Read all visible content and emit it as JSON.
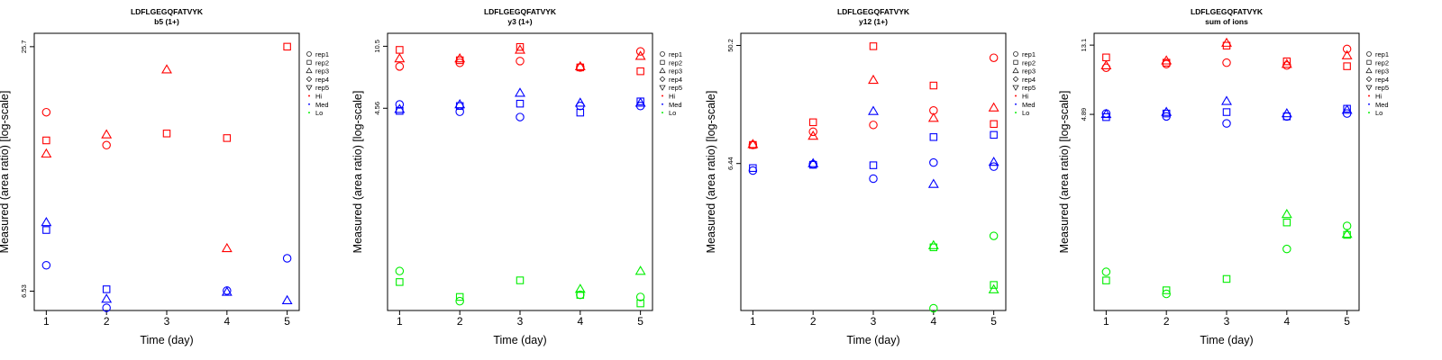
{
  "legend": {
    "entries": [
      {
        "label": "rep1",
        "marker": "circle"
      },
      {
        "label": "rep2",
        "marker": "square"
      },
      {
        "label": "rep3",
        "marker": "triangle-up"
      },
      {
        "label": "rep4",
        "marker": "diamond"
      },
      {
        "label": "rep5",
        "marker": "triangle-down"
      },
      {
        "label": "Hi",
        "marker": "dot",
        "color": "#ff0000"
      },
      {
        "label": "Med",
        "marker": "dot",
        "color": "#0000ff"
      },
      {
        "label": "Lo",
        "marker": "dot",
        "color": "#00ee00"
      }
    ]
  },
  "colors": {
    "Hi": "#ff0000",
    "Med": "#0000ff",
    "Lo": "#00ee00"
  },
  "chart_data": [
    {
      "type": "scatter",
      "title": "LDFLGEGQFATVYK",
      "subtitle": "b5 (1+)",
      "xlabel": "Time (day)",
      "ylabel": "Measured (area ratio) [log-scale]",
      "y_scale": "log",
      "xlim": [
        0.8,
        5.2
      ],
      "ylim": [
        5.86,
        27.7
      ],
      "x_ticks": [
        1,
        2,
        3,
        4,
        5
      ],
      "y_ticks": [
        {
          "value": 6.53,
          "label": "6.53"
        },
        {
          "value": 25.7,
          "label": "25.7"
        }
      ],
      "points": [
        {
          "x": 1,
          "y": 17.8,
          "rep": "rep1",
          "group": "Hi"
        },
        {
          "x": 1,
          "y": 15.2,
          "rep": "rep2",
          "group": "Hi"
        },
        {
          "x": 1,
          "y": 14.1,
          "rep": "rep3",
          "group": "Hi"
        },
        {
          "x": 2,
          "y": 14.8,
          "rep": "rep1",
          "group": "Hi"
        },
        {
          "x": 2,
          "y": 15.7,
          "rep": "rep3",
          "group": "Hi"
        },
        {
          "x": 3,
          "y": 15.8,
          "rep": "rep2",
          "group": "Hi"
        },
        {
          "x": 3,
          "y": 22.6,
          "rep": "rep3",
          "group": "Hi"
        },
        {
          "x": 4,
          "y": 15.4,
          "rep": "rep2",
          "group": "Hi"
        },
        {
          "x": 4,
          "y": 8.3,
          "rep": "rep3",
          "group": "Hi"
        },
        {
          "x": 5,
          "y": 25.7,
          "rep": "rep2",
          "group": "Hi"
        },
        {
          "x": 1,
          "y": 7.55,
          "rep": "rep1",
          "group": "Med"
        },
        {
          "x": 1,
          "y": 9.2,
          "rep": "rep2",
          "group": "Med"
        },
        {
          "x": 1,
          "y": 9.6,
          "rep": "rep3",
          "group": "Med"
        },
        {
          "x": 2,
          "y": 5.95,
          "rep": "rep1",
          "group": "Med"
        },
        {
          "x": 2,
          "y": 6.6,
          "rep": "rep2",
          "group": "Med"
        },
        {
          "x": 2,
          "y": 6.25,
          "rep": "rep3",
          "group": "Med"
        },
        {
          "x": 4,
          "y": 6.55,
          "rep": "rep1",
          "group": "Med"
        },
        {
          "x": 4,
          "y": 6.5,
          "rep": "rep3",
          "group": "Med"
        },
        {
          "x": 5,
          "y": 7.85,
          "rep": "rep1",
          "group": "Med"
        },
        {
          "x": 5,
          "y": 6.2,
          "rep": "rep3",
          "group": "Med"
        }
      ]
    },
    {
      "type": "scatter",
      "title": "LDFLGEGQFATVYK",
      "subtitle": "y3 (1+)",
      "xlabel": "Time (day)",
      "ylabel": "Measured (area ratio) [log-scale]",
      "y_scale": "log",
      "xlim": [
        0.8,
        5.2
      ],
      "ylim": [
        0.3,
        12.5
      ],
      "x_ticks": [
        1,
        2,
        3,
        4,
        5
      ],
      "y_ticks": [
        {
          "value": 4.56,
          "label": "4.56"
        },
        {
          "value": 10.5,
          "label": "10.5"
        }
      ],
      "points": [
        {
          "x": 1,
          "y": 8.0,
          "rep": "rep1",
          "group": "Hi"
        },
        {
          "x": 1,
          "y": 10.0,
          "rep": "rep2",
          "group": "Hi"
        },
        {
          "x": 1,
          "y": 8.9,
          "rep": "rep3",
          "group": "Hi"
        },
        {
          "x": 2,
          "y": 8.4,
          "rep": "rep1",
          "group": "Hi"
        },
        {
          "x": 2,
          "y": 8.7,
          "rep": "rep2",
          "group": "Hi"
        },
        {
          "x": 2,
          "y": 8.9,
          "rep": "rep3",
          "group": "Hi"
        },
        {
          "x": 3,
          "y": 8.6,
          "rep": "rep1",
          "group": "Hi"
        },
        {
          "x": 3,
          "y": 10.4,
          "rep": "rep2",
          "group": "Hi"
        },
        {
          "x": 3,
          "y": 10.0,
          "rep": "rep3",
          "group": "Hi"
        },
        {
          "x": 4,
          "y": 7.9,
          "rep": "rep1",
          "group": "Hi"
        },
        {
          "x": 4,
          "y": 7.9,
          "rep": "rep2",
          "group": "Hi"
        },
        {
          "x": 4,
          "y": 8.0,
          "rep": "rep3",
          "group": "Hi"
        },
        {
          "x": 5,
          "y": 9.8,
          "rep": "rep1",
          "group": "Hi"
        },
        {
          "x": 5,
          "y": 7.5,
          "rep": "rep2",
          "group": "Hi"
        },
        {
          "x": 5,
          "y": 9.2,
          "rep": "rep3",
          "group": "Hi"
        },
        {
          "x": 1,
          "y": 4.8,
          "rep": "rep1",
          "group": "Med"
        },
        {
          "x": 1,
          "y": 4.4,
          "rep": "rep2",
          "group": "Med"
        },
        {
          "x": 1,
          "y": 4.5,
          "rep": "rep3",
          "group": "Med"
        },
        {
          "x": 2,
          "y": 4.35,
          "rep": "rep1",
          "group": "Med"
        },
        {
          "x": 2,
          "y": 4.7,
          "rep": "rep2",
          "group": "Med"
        },
        {
          "x": 2,
          "y": 4.8,
          "rep": "rep3",
          "group": "Med"
        },
        {
          "x": 3,
          "y": 4.05,
          "rep": "rep1",
          "group": "Med"
        },
        {
          "x": 3,
          "y": 4.85,
          "rep": "rep2",
          "group": "Med"
        },
        {
          "x": 3,
          "y": 5.6,
          "rep": "rep3",
          "group": "Med"
        },
        {
          "x": 4,
          "y": 4.7,
          "rep": "rep1",
          "group": "Med"
        },
        {
          "x": 4,
          "y": 4.3,
          "rep": "rep2",
          "group": "Med"
        },
        {
          "x": 4,
          "y": 4.9,
          "rep": "rep3",
          "group": "Med"
        },
        {
          "x": 5,
          "y": 4.7,
          "rep": "rep1",
          "group": "Med"
        },
        {
          "x": 5,
          "y": 5.0,
          "rep": "rep2",
          "group": "Med"
        },
        {
          "x": 5,
          "y": 4.9,
          "rep": "rep3",
          "group": "Med"
        },
        {
          "x": 1,
          "y": 0.51,
          "rep": "rep1",
          "group": "Lo"
        },
        {
          "x": 1,
          "y": 0.44,
          "rep": "rep2",
          "group": "Lo"
        },
        {
          "x": 2,
          "y": 0.34,
          "rep": "rep1",
          "group": "Lo"
        },
        {
          "x": 2,
          "y": 0.36,
          "rep": "rep2",
          "group": "Lo"
        },
        {
          "x": 3,
          "y": 0.45,
          "rep": "rep2",
          "group": "Lo"
        },
        {
          "x": 4,
          "y": 0.37,
          "rep": "rep1",
          "group": "Lo"
        },
        {
          "x": 4,
          "y": 0.37,
          "rep": "rep2",
          "group": "Lo"
        },
        {
          "x": 4,
          "y": 0.4,
          "rep": "rep3",
          "group": "Lo"
        },
        {
          "x": 5,
          "y": 0.36,
          "rep": "rep1",
          "group": "Lo"
        },
        {
          "x": 5,
          "y": 0.33,
          "rep": "rep2",
          "group": "Lo"
        },
        {
          "x": 5,
          "y": 0.51,
          "rep": "rep3",
          "group": "Lo"
        }
      ]
    },
    {
      "type": "scatter",
      "title": "LDFLGEGQFATVYK",
      "subtitle": "y12 (1+)",
      "xlabel": "Time (day)",
      "ylabel": "Measured (area ratio) [log-scale]",
      "y_scale": "log",
      "xlim": [
        0.8,
        5.2
      ],
      "ylim": [
        0.5,
        62
      ],
      "x_ticks": [
        1,
        2,
        3,
        4,
        5
      ],
      "y_ticks": [
        {
          "value": 6.44,
          "label": "6.44"
        },
        {
          "value": 50.2,
          "label": "50.2"
        }
      ],
      "points": [
        {
          "x": 1,
          "y": 8.9,
          "rep": "rep1",
          "group": "Hi"
        },
        {
          "x": 1,
          "y": 8.9,
          "rep": "rep2",
          "group": "Hi"
        },
        {
          "x": 1,
          "y": 9.0,
          "rep": "rep3",
          "group": "Hi"
        },
        {
          "x": 2,
          "y": 11.2,
          "rep": "rep1",
          "group": "Hi"
        },
        {
          "x": 2,
          "y": 13.2,
          "rep": "rep2",
          "group": "Hi"
        },
        {
          "x": 2,
          "y": 10.4,
          "rep": "rep3",
          "group": "Hi"
        },
        {
          "x": 3,
          "y": 12.6,
          "rep": "rep1",
          "group": "Hi"
        },
        {
          "x": 3,
          "y": 49.5,
          "rep": "rep2",
          "group": "Hi"
        },
        {
          "x": 3,
          "y": 27.5,
          "rep": "rep3",
          "group": "Hi"
        },
        {
          "x": 4,
          "y": 16.2,
          "rep": "rep1",
          "group": "Hi"
        },
        {
          "x": 4,
          "y": 25.0,
          "rep": "rep2",
          "group": "Hi"
        },
        {
          "x": 4,
          "y": 14.2,
          "rep": "rep3",
          "group": "Hi"
        },
        {
          "x": 5,
          "y": 40.5,
          "rep": "rep1",
          "group": "Hi"
        },
        {
          "x": 5,
          "y": 12.8,
          "rep": "rep2",
          "group": "Hi"
        },
        {
          "x": 5,
          "y": 17.0,
          "rep": "rep3",
          "group": "Hi"
        },
        {
          "x": 1,
          "y": 5.7,
          "rep": "rep1",
          "group": "Med"
        },
        {
          "x": 1,
          "y": 5.95,
          "rep": "rep2",
          "group": "Med"
        },
        {
          "x": 2,
          "y": 6.35,
          "rep": "rep1",
          "group": "Med"
        },
        {
          "x": 2,
          "y": 6.3,
          "rep": "rep2",
          "group": "Med"
        },
        {
          "x": 2,
          "y": 6.45,
          "rep": "rep3",
          "group": "Med"
        },
        {
          "x": 3,
          "y": 4.95,
          "rep": "rep1",
          "group": "Med"
        },
        {
          "x": 3,
          "y": 6.25,
          "rep": "rep2",
          "group": "Med"
        },
        {
          "x": 3,
          "y": 16.0,
          "rep": "rep3",
          "group": "Med"
        },
        {
          "x": 4,
          "y": 6.55,
          "rep": "rep1",
          "group": "Med"
        },
        {
          "x": 4,
          "y": 10.2,
          "rep": "rep2",
          "group": "Med"
        },
        {
          "x": 4,
          "y": 4.5,
          "rep": "rep3",
          "group": "Med"
        },
        {
          "x": 5,
          "y": 6.1,
          "rep": "rep1",
          "group": "Med"
        },
        {
          "x": 5,
          "y": 10.6,
          "rep": "rep2",
          "group": "Med"
        },
        {
          "x": 5,
          "y": 6.6,
          "rep": "rep3",
          "group": "Med"
        },
        {
          "x": 4,
          "y": 0.52,
          "rep": "rep1",
          "group": "Lo"
        },
        {
          "x": 4,
          "y": 1.5,
          "rep": "rep2",
          "group": "Lo"
        },
        {
          "x": 4,
          "y": 1.55,
          "rep": "rep3",
          "group": "Lo"
        },
        {
          "x": 5,
          "y": 1.83,
          "rep": "rep1",
          "group": "Lo"
        },
        {
          "x": 5,
          "y": 0.78,
          "rep": "rep2",
          "group": "Lo"
        },
        {
          "x": 5,
          "y": 0.72,
          "rep": "rep3",
          "group": "Lo"
        }
      ]
    },
    {
      "type": "scatter",
      "title": "LDFLGEGQFATVYK",
      "subtitle": "sum of ions",
      "xlabel": "Time (day)",
      "ylabel": "Measured (area ratio) [log-scale]",
      "y_scale": "log",
      "xlim": [
        0.8,
        5.2
      ],
      "ylim": [
        0.3,
        15.5
      ],
      "x_ticks": [
        1,
        2,
        3,
        4,
        5
      ],
      "y_ticks": [
        {
          "value": 4.89,
          "label": "4.89"
        },
        {
          "value": 13.1,
          "label": "13.1"
        }
      ],
      "points": [
        {
          "x": 1,
          "y": 9.5,
          "rep": "rep1",
          "group": "Hi"
        },
        {
          "x": 1,
          "y": 11.0,
          "rep": "rep2",
          "group": "Hi"
        },
        {
          "x": 1,
          "y": 9.8,
          "rep": "rep3",
          "group": "Hi"
        },
        {
          "x": 2,
          "y": 10.0,
          "rep": "rep1",
          "group": "Hi"
        },
        {
          "x": 2,
          "y": 10.2,
          "rep": "rep2",
          "group": "Hi"
        },
        {
          "x": 2,
          "y": 10.5,
          "rep": "rep3",
          "group": "Hi"
        },
        {
          "x": 3,
          "y": 10.2,
          "rep": "rep1",
          "group": "Hi"
        },
        {
          "x": 3,
          "y": 13.0,
          "rep": "rep2",
          "group": "Hi"
        },
        {
          "x": 3,
          "y": 13.5,
          "rep": "rep3",
          "group": "Hi"
        },
        {
          "x": 4,
          "y": 9.8,
          "rep": "rep1",
          "group": "Hi"
        },
        {
          "x": 4,
          "y": 10.4,
          "rep": "rep2",
          "group": "Hi"
        },
        {
          "x": 4,
          "y": 10.0,
          "rep": "rep3",
          "group": "Hi"
        },
        {
          "x": 5,
          "y": 12.4,
          "rep": "rep1",
          "group": "Hi"
        },
        {
          "x": 5,
          "y": 9.7,
          "rep": "rep2",
          "group": "Hi"
        },
        {
          "x": 5,
          "y": 11.3,
          "rep": "rep3",
          "group": "Hi"
        },
        {
          "x": 1,
          "y": 4.95,
          "rep": "rep1",
          "group": "Med"
        },
        {
          "x": 1,
          "y": 4.7,
          "rep": "rep2",
          "group": "Med"
        },
        {
          "x": 1,
          "y": 4.9,
          "rep": "rep3",
          "group": "Med"
        },
        {
          "x": 2,
          "y": 4.75,
          "rep": "rep1",
          "group": "Med"
        },
        {
          "x": 2,
          "y": 4.95,
          "rep": "rep2",
          "group": "Med"
        },
        {
          "x": 2,
          "y": 5.05,
          "rep": "rep3",
          "group": "Med"
        },
        {
          "x": 3,
          "y": 4.3,
          "rep": "rep1",
          "group": "Med"
        },
        {
          "x": 3,
          "y": 5.05,
          "rep": "rep2",
          "group": "Med"
        },
        {
          "x": 3,
          "y": 5.9,
          "rep": "rep3",
          "group": "Med"
        },
        {
          "x": 4,
          "y": 4.75,
          "rep": "rep1",
          "group": "Med"
        },
        {
          "x": 4,
          "y": 4.75,
          "rep": "rep2",
          "group": "Med"
        },
        {
          "x": 4,
          "y": 4.95,
          "rep": "rep3",
          "group": "Med"
        },
        {
          "x": 5,
          "y": 4.95,
          "rep": "rep1",
          "group": "Med"
        },
        {
          "x": 5,
          "y": 5.3,
          "rep": "rep2",
          "group": "Med"
        },
        {
          "x": 5,
          "y": 5.2,
          "rep": "rep3",
          "group": "Med"
        },
        {
          "x": 1,
          "y": 0.52,
          "rep": "rep1",
          "group": "Lo"
        },
        {
          "x": 1,
          "y": 0.46,
          "rep": "rep2",
          "group": "Lo"
        },
        {
          "x": 2,
          "y": 0.38,
          "rep": "rep1",
          "group": "Lo"
        },
        {
          "x": 2,
          "y": 0.4,
          "rep": "rep2",
          "group": "Lo"
        },
        {
          "x": 3,
          "y": 0.47,
          "rep": "rep2",
          "group": "Lo"
        },
        {
          "x": 4,
          "y": 0.72,
          "rep": "rep1",
          "group": "Lo"
        },
        {
          "x": 4,
          "y": 1.05,
          "rep": "rep2",
          "group": "Lo"
        },
        {
          "x": 4,
          "y": 1.18,
          "rep": "rep3",
          "group": "Lo"
        },
        {
          "x": 5,
          "y": 1.0,
          "rep": "rep1",
          "group": "Lo"
        },
        {
          "x": 5,
          "y": 0.88,
          "rep": "rep2",
          "group": "Lo"
        },
        {
          "x": 5,
          "y": 0.89,
          "rep": "rep3",
          "group": "Lo"
        }
      ]
    }
  ]
}
